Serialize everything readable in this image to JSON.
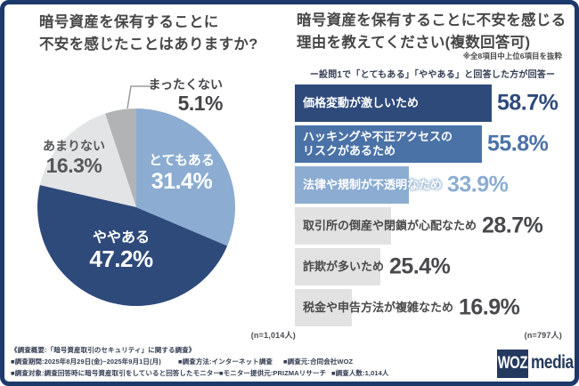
{
  "frame": {
    "border_color": "#1c3969",
    "background": "#ffffff"
  },
  "palette": {
    "navy": "#2e4a7b",
    "medium_blue": "#4b72a7",
    "light_blue": "#8cadd1",
    "bar_gray": "#e2e2e3",
    "pie_light_gray": "#e3e4e6",
    "pie_mid_gray": "#b1b3b5",
    "title_text": "#474747",
    "footer_text": "#333d52",
    "logo_navy": "#24395e"
  },
  "left_panel": {
    "title": "暗号資産を保有することに\n不安を感じたことはありますか?",
    "sample_note": "(n=1,014人)"
  },
  "right_panel": {
    "title": "暗号資産を保有することに不安を感じる\n理由を教えてください(複数回答可)",
    "note": "※全8項目中上位6項目を抜粋",
    "subtitle": "ー設問1で「とてもある」「ややある」と回答した方が回答ー",
    "sample_note": "(n=797人)"
  },
  "footer": {
    "overview": "《調査概要:「暗号資産取引のセキュリティ」に関する調査》",
    "row1": [
      "■調査期間:2025年8月29日(金)~2025年9月1日(月)",
      "■調査方法:インターネット調査",
      "■調査元:合同会社WOZ"
    ],
    "row2": [
      "■調査対象:調査回答時に暗号資産取引をしていると回答したモニター",
      "■モニター提供元:PRIZMAリサーチ",
      "■調査人数:1,014人"
    ],
    "logo": {
      "box_text": "WOZ",
      "suffix": "media"
    }
  },
  "chart_data": [
    {
      "type": "pie",
      "title": "暗号資産を保有することに不安を感じたことはありますか?",
      "categories": [
        "とてもある",
        "ややある",
        "あまりない",
        "まったくない"
      ],
      "values": [
        31.4,
        47.2,
        16.3,
        5.1
      ],
      "display_values": [
        "31.4%",
        "47.2%",
        "16.3%",
        "5.1%"
      ],
      "unit": "%",
      "n": "(n=1,014人)",
      "colors": [
        "#8cadd1",
        "#2e4a7b",
        "#e3e4e6",
        "#b1b3b5"
      ],
      "start_angle_deg": 0,
      "direction": "clockwise",
      "legend_position": "on-slice"
    },
    {
      "type": "bar",
      "orientation": "horizontal",
      "title": "暗号資産を保有することに不安を感じる理由を教えてください(複数回答可)",
      "categories": [
        "価格変動が激しいため",
        "ハッキングや不正アクセスの\nリスクがあるため",
        "法律や規制が不透明なため",
        "取引所の倒産や閉鎖が心配なため",
        "詐欺が多いため",
        "税金や申告方法が複雑なため"
      ],
      "values": [
        58.7,
        55.8,
        33.9,
        28.7,
        25.4,
        16.9
      ],
      "display_values": [
        "58.7%",
        "55.8%",
        "33.9%",
        "28.7%",
        "25.4%",
        "16.9%"
      ],
      "unit": "%",
      "xlim": [
        0,
        60
      ],
      "n": "(n=797人)",
      "bar_colors": [
        "#2e4a7b",
        "#4b72a7",
        "#8cadd1",
        "#e2e2e3",
        "#e2e2e3",
        "#e2e2e3"
      ],
      "label_colors": [
        "#ffffff",
        "#ffffff",
        "#ffffff",
        "#4a4a4a",
        "#4a4a4a",
        "#4a4a4a"
      ],
      "label_glow": [
        false,
        false,
        true,
        false,
        false,
        false
      ],
      "value_colors": [
        "#2e4a7b",
        "#4b72a7",
        "#8cadd1",
        "#47494c",
        "#47494c",
        "#47494c"
      ],
      "grid": false
    }
  ]
}
